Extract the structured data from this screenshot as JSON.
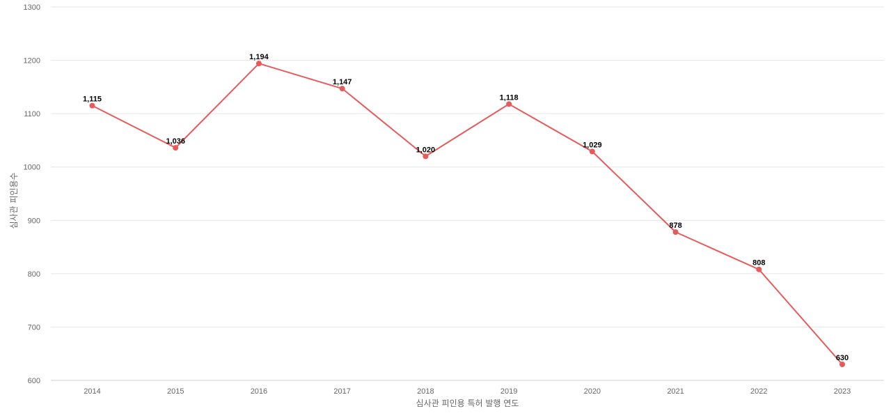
{
  "chart_data": {
    "type": "line",
    "title": "",
    "xlabel": "심사관 피인용 특허 발행 연도",
    "ylabel": "심사관 피인용수",
    "ylim": [
      600,
      1300
    ],
    "yticks": [
      600,
      700,
      800,
      900,
      1000,
      1100,
      1200,
      1300
    ],
    "categories": [
      "2014",
      "2015",
      "2016",
      "2017",
      "2018",
      "2019",
      "2020",
      "2021",
      "2022",
      "2023"
    ],
    "series": [
      {
        "values": [
          1115,
          1036,
          1194,
          1147,
          1020,
          1118,
          1029,
          878,
          808,
          630
        ],
        "labels": [
          "1,115",
          "1,036",
          "1,194",
          "1,147",
          "1,020",
          "1,118",
          "1,029",
          "878",
          "808",
          "630"
        ],
        "color": "#e85a5a"
      }
    ],
    "grid": true,
    "legend": "none"
  }
}
